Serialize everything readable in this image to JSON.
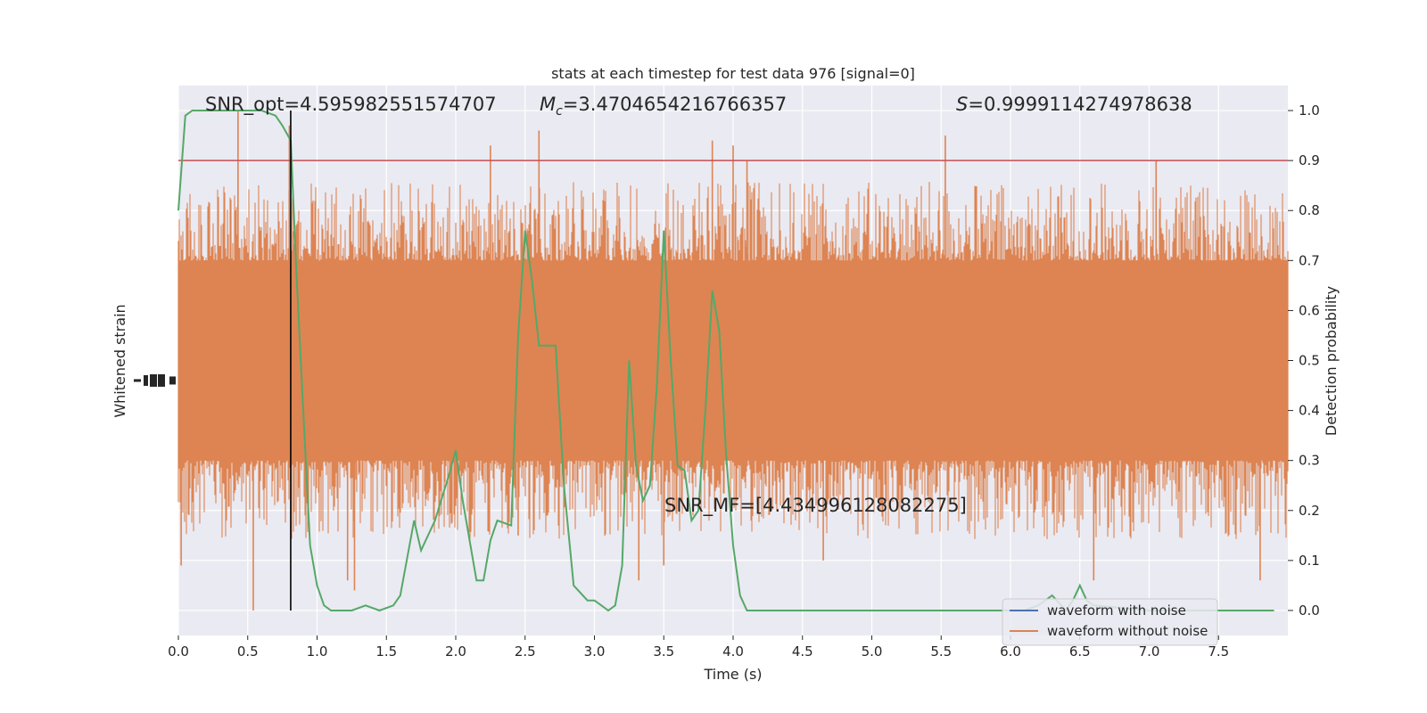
{
  "chart_data": {
    "type": "line",
    "title": "stats at each timestep for test data 976 [signal=0]",
    "xlabel": "Time (s)",
    "ylabel_left": "Whitened strain",
    "ylabel_right": "Detection probability",
    "xlim": [
      0.0,
      8.0
    ],
    "ylim_right": [
      -0.05,
      1.05
    ],
    "xticks": [
      "0.0",
      "0.5",
      "1.0",
      "1.5",
      "2.0",
      "2.5",
      "3.0",
      "3.5",
      "4.0",
      "4.5",
      "5.0",
      "5.5",
      "6.0",
      "6.5",
      "7.0",
      "7.5"
    ],
    "yticks_right": [
      "0.0",
      "0.1",
      "0.2",
      "0.3",
      "0.4",
      "0.5",
      "0.6",
      "0.7",
      "0.8",
      "0.9",
      "1.0"
    ],
    "grid": true,
    "legend_placement": "lower-right",
    "annotations": {
      "snr_opt": "SNR_opt=4.595982551574707",
      "mc_symbol": "M",
      "mc_sub": "c",
      "mc_value": "=3.4704654216766357",
      "s_symbol": "S",
      "s_value": "=0.9999114274978638",
      "snr_mf": "SNR_MF=[4.434996128082275]"
    },
    "threshold": 0.9,
    "vline_x": 0.81,
    "series": [
      {
        "name": "waveform with noise",
        "color": "#4c72b0",
        "values": []
      },
      {
        "name": "waveform without noise",
        "color": "#dd8452",
        "band_core": [
          0.3,
          0.7
        ],
        "band_envelope": [
          0.15,
          0.85
        ],
        "spikes_up": [
          [
            0.43,
            1.0
          ],
          [
            0.8,
            0.97
          ],
          [
            2.25,
            0.93
          ],
          [
            2.6,
            0.96
          ],
          [
            3.85,
            0.94
          ],
          [
            4.0,
            0.93
          ],
          [
            4.1,
            0.9
          ],
          [
            5.53,
            0.95
          ],
          [
            7.05,
            0.9
          ]
        ],
        "spikes_down": [
          [
            0.02,
            0.09
          ],
          [
            0.54,
            0.0
          ],
          [
            1.22,
            0.06
          ],
          [
            1.27,
            0.04
          ],
          [
            2.45,
            0.15
          ],
          [
            3.32,
            0.06
          ],
          [
            3.5,
            0.09
          ],
          [
            4.65,
            0.1
          ],
          [
            6.6,
            0.06
          ],
          [
            7.8,
            0.06
          ]
        ]
      },
      {
        "name": "Detection probability",
        "color": "#55a868",
        "x": [
          0.0,
          0.05,
          0.1,
          0.2,
          0.3,
          0.4,
          0.5,
          0.6,
          0.7,
          0.75,
          0.81,
          0.85,
          0.9,
          0.95,
          1.0,
          1.05,
          1.1,
          1.15,
          1.25,
          1.35,
          1.45,
          1.55,
          1.6,
          1.7,
          1.75,
          1.85,
          1.95,
          2.0,
          2.05,
          2.15,
          2.2,
          2.25,
          2.3,
          2.4,
          2.45,
          2.5,
          2.55,
          2.6,
          2.65,
          2.72,
          2.78,
          2.85,
          2.95,
          3.0,
          3.05,
          3.1,
          3.15,
          3.2,
          3.25,
          3.3,
          3.35,
          3.4,
          3.45,
          3.5,
          3.55,
          3.6,
          3.65,
          3.7,
          3.75,
          3.8,
          3.85,
          3.9,
          3.95,
          4.0,
          4.05,
          4.1,
          4.2,
          4.3,
          4.35,
          4.4,
          4.6,
          4.8,
          5.0,
          5.5,
          6.0,
          6.1,
          6.2,
          6.25,
          6.3,
          6.4,
          6.45,
          6.5,
          6.55,
          6.6,
          7.0,
          7.5,
          7.9
        ],
        "y": [
          0.8,
          0.99,
          1.0,
          1.0,
          1.0,
          1.0,
          1.0,
          1.0,
          0.99,
          0.97,
          0.94,
          0.68,
          0.4,
          0.13,
          0.05,
          0.01,
          0.0,
          0.0,
          0.0,
          0.01,
          0.0,
          0.01,
          0.03,
          0.18,
          0.12,
          0.18,
          0.27,
          0.32,
          0.22,
          0.06,
          0.06,
          0.14,
          0.18,
          0.17,
          0.55,
          0.76,
          0.66,
          0.53,
          0.53,
          0.53,
          0.25,
          0.05,
          0.02,
          0.02,
          0.01,
          0.0,
          0.01,
          0.09,
          0.5,
          0.29,
          0.22,
          0.25,
          0.45,
          0.76,
          0.5,
          0.29,
          0.28,
          0.18,
          0.2,
          0.4,
          0.64,
          0.56,
          0.31,
          0.13,
          0.03,
          0.0,
          0.0,
          0.0,
          0.0,
          0.0,
          0.0,
          0.0,
          0.0,
          0.0,
          0.0,
          0.0,
          0.01,
          0.02,
          0.03,
          0.0,
          0.02,
          0.05,
          0.02,
          0.01,
          0.0,
          0.0,
          0.0
        ]
      }
    ]
  }
}
